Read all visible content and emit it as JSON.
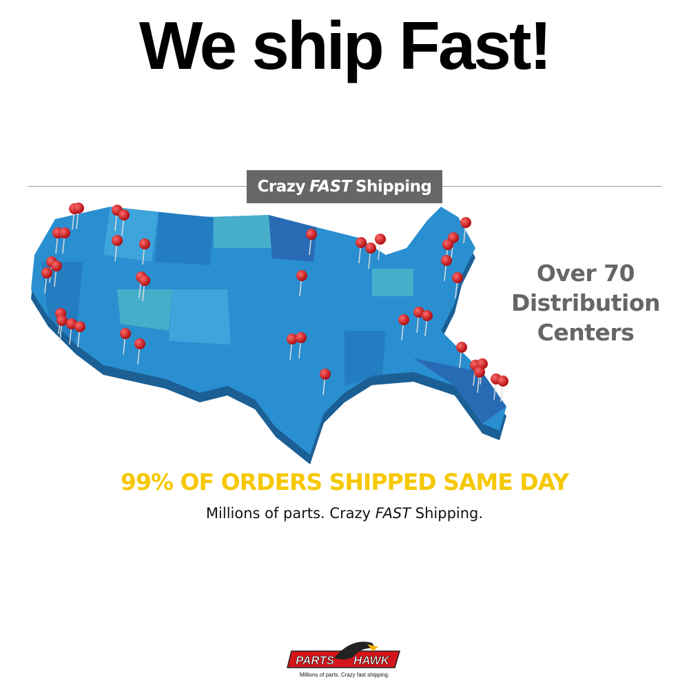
{
  "headline": "We ship Fast!",
  "banner": {
    "pre": "Crazy",
    "emph": "FAST",
    "post": "Shipping"
  },
  "distribution": {
    "line1": "Over 70",
    "line2": "Distribution",
    "line3": "Centers"
  },
  "orders_text": "99% OF ORDERS SHIPPED SAME DAY",
  "tagline": {
    "pre": "Millions of parts. Crazy",
    "emph": "FAST",
    "post": "Shipping."
  },
  "logo": {
    "word1": "PARTS",
    "word2": "HAWK",
    "tagline": "Millions of parts. Crazy fast shipping."
  },
  "colors": {
    "map_blue": "#2a8fd0",
    "pin_red": "#d4161b",
    "orders_yellow": "#f6c800",
    "banner_gray": "#666666"
  },
  "icons": [
    "map-pin-icon",
    "hawk-logo-icon"
  ]
}
